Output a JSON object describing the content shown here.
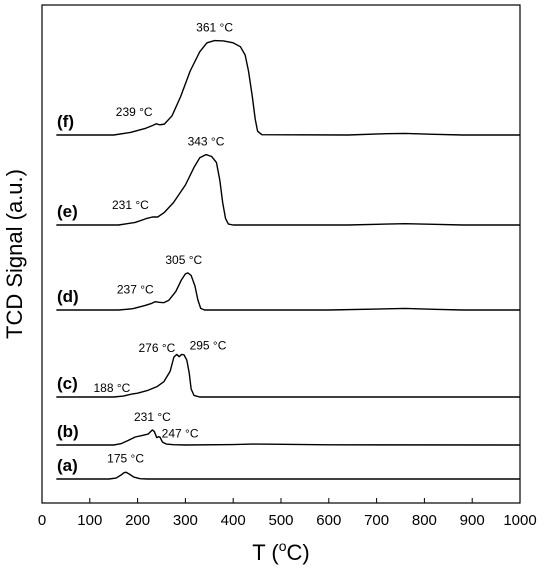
{
  "chart_data": {
    "type": "line",
    "xlabel": "T (",
    "xlabel_sup": "o",
    "xlabel_unit": "C)",
    "ylabel": "TCD Signal (a.u.)",
    "xlim": [
      0,
      1000
    ],
    "xticks": [
      0,
      100,
      200,
      300,
      400,
      500,
      600,
      700,
      800,
      900,
      1000
    ],
    "xtick_labels": [
      "0",
      "100",
      "200",
      "300",
      "400",
      "500",
      "600",
      "700",
      "800",
      "900",
      "1000"
    ],
    "grid": false,
    "series": [
      {
        "name": "(a)",
        "baseline": 0,
        "points": [
          [
            30,
            0
          ],
          [
            140,
            0
          ],
          [
            155,
            0.3
          ],
          [
            165,
            1.2
          ],
          [
            172,
            2.0
          ],
          [
            176,
            2.1
          ],
          [
            182,
            1.6
          ],
          [
            192,
            0.6
          ],
          [
            205,
            0.1
          ],
          [
            220,
            0
          ],
          [
            1000,
            0
          ]
        ]
      },
      {
        "name": "(b)",
        "baseline": 0,
        "points": [
          [
            30,
            0
          ],
          [
            150,
            0
          ],
          [
            165,
            0.4
          ],
          [
            180,
            1.4
          ],
          [
            195,
            2.5
          ],
          [
            210,
            3.0
          ],
          [
            222,
            3.4
          ],
          [
            228,
            4.3
          ],
          [
            231,
            4.7
          ],
          [
            235,
            4.2
          ],
          [
            240,
            2.3
          ],
          [
            244,
            2.6
          ],
          [
            247,
            2.4
          ],
          [
            252,
            0.9
          ],
          [
            260,
            0.3
          ],
          [
            275,
            0.1
          ],
          [
            300,
            0
          ],
          [
            400,
            0.15
          ],
          [
            440,
            0.3
          ],
          [
            480,
            0.25
          ],
          [
            600,
            0.05
          ],
          [
            1000,
            0
          ]
        ]
      },
      {
        "name": "(c)",
        "baseline": 0,
        "points": [
          [
            30,
            0
          ],
          [
            150,
            0
          ],
          [
            170,
            0.3
          ],
          [
            188,
            0.9
          ],
          [
            200,
            1.2
          ],
          [
            220,
            2.0
          ],
          [
            240,
            3.2
          ],
          [
            255,
            4.8
          ],
          [
            268,
            8.0
          ],
          [
            276,
            12.5
          ],
          [
            282,
            13.3
          ],
          [
            287,
            12.6
          ],
          [
            292,
            13.3
          ],
          [
            297,
            13.2
          ],
          [
            303,
            11.5
          ],
          [
            308,
            7.5
          ],
          [
            312,
            2.5
          ],
          [
            318,
            0.5
          ],
          [
            330,
            0
          ],
          [
            1000,
            0
          ]
        ]
      },
      {
        "name": "(d)",
        "baseline": 0,
        "points": [
          [
            30,
            0
          ],
          [
            160,
            0
          ],
          [
            190,
            0.4
          ],
          [
            215,
            1.4
          ],
          [
            230,
            2.1
          ],
          [
            237,
            2.6
          ],
          [
            245,
            2.4
          ],
          [
            255,
            2.3
          ],
          [
            265,
            3.0
          ],
          [
            280,
            5.8
          ],
          [
            292,
            9.5
          ],
          [
            300,
            11.3
          ],
          [
            305,
            11.6
          ],
          [
            312,
            10.8
          ],
          [
            320,
            7.5
          ],
          [
            326,
            3.2
          ],
          [
            332,
            0.5
          ],
          [
            340,
            0
          ],
          [
            600,
            0
          ],
          [
            700,
            0.3
          ],
          [
            760,
            0.5
          ],
          [
            820,
            0.2
          ],
          [
            880,
            0
          ],
          [
            1000,
            0
          ]
        ]
      },
      {
        "name": "(e)",
        "baseline": 0,
        "points": [
          [
            30,
            0
          ],
          [
            160,
            0
          ],
          [
            195,
            0.8
          ],
          [
            218,
            2.0
          ],
          [
            231,
            2.5
          ],
          [
            242,
            2.5
          ],
          [
            255,
            3.8
          ],
          [
            275,
            7.0
          ],
          [
            300,
            12.5
          ],
          [
            318,
            18.0
          ],
          [
            330,
            21.0
          ],
          [
            343,
            22.0
          ],
          [
            355,
            21.4
          ],
          [
            365,
            19.5
          ],
          [
            372,
            14.0
          ],
          [
            378,
            7.0
          ],
          [
            384,
            2.0
          ],
          [
            390,
            0.3
          ],
          [
            400,
            0
          ],
          [
            640,
            0
          ],
          [
            720,
            0.3
          ],
          [
            760,
            0.4
          ],
          [
            820,
            0.2
          ],
          [
            880,
            0
          ],
          [
            1000,
            0
          ]
        ]
      },
      {
        "name": "(f)",
        "baseline": 0,
        "points": [
          [
            30,
            0
          ],
          [
            150,
            0
          ],
          [
            185,
            0.8
          ],
          [
            215,
            2.0
          ],
          [
            232,
            3.0
          ],
          [
            239,
            3.5
          ],
          [
            246,
            3.2
          ],
          [
            256,
            3.4
          ],
          [
            272,
            6.0
          ],
          [
            290,
            12.0
          ],
          [
            310,
            20.0
          ],
          [
            330,
            26.0
          ],
          [
            345,
            28.8
          ],
          [
            361,
            29.5
          ],
          [
            380,
            29.4
          ],
          [
            400,
            28.8
          ],
          [
            415,
            27.6
          ],
          [
            425,
            25.0
          ],
          [
            432,
            20.0
          ],
          [
            440,
            12.0
          ],
          [
            446,
            5.0
          ],
          [
            451,
            1.2
          ],
          [
            460,
            0.1
          ],
          [
            640,
            0
          ],
          [
            720,
            0.4
          ],
          [
            760,
            0.5
          ],
          [
            820,
            0.2
          ],
          [
            880,
            0
          ],
          [
            1000,
            0
          ]
        ]
      }
    ],
    "annotations": [
      {
        "series": "(a)",
        "text": "175 °C",
        "x": 175
      },
      {
        "series": "(b)",
        "text": "231 °C",
        "x": 231
      },
      {
        "series": "(b)",
        "text": "247 °C",
        "x": 247
      },
      {
        "series": "(c)",
        "text": "188 °C",
        "x": 188
      },
      {
        "series": "(c)",
        "text": "276 °C",
        "x": 276
      },
      {
        "series": "(c)",
        "text": "295 °C",
        "x": 295
      },
      {
        "series": "(d)",
        "text": "237 °C",
        "x": 237
      },
      {
        "series": "(d)",
        "text": "305 °C",
        "x": 305
      },
      {
        "series": "(e)",
        "text": "231 °C",
        "x": 231
      },
      {
        "series": "(e)",
        "text": "343 °C",
        "x": 343
      },
      {
        "series": "(f)",
        "text": "239 °C",
        "x": 239
      },
      {
        "series": "(f)",
        "text": "361 °C",
        "x": 361
      }
    ]
  }
}
